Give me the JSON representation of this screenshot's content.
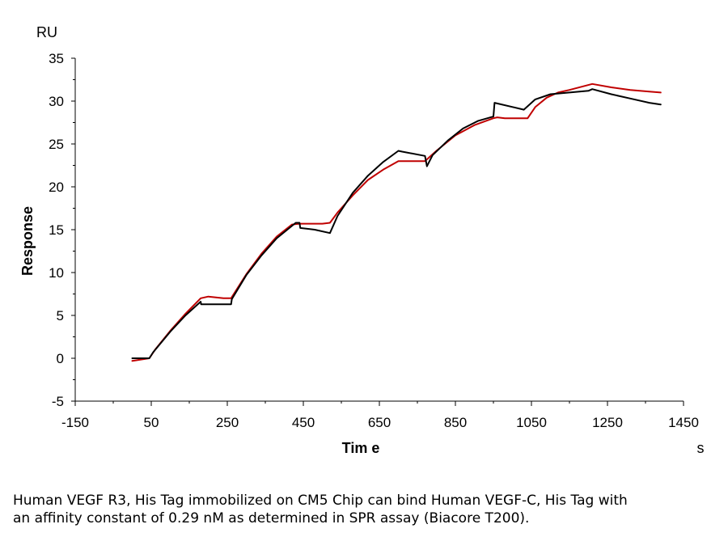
{
  "chart_data": {
    "type": "line",
    "title": "",
    "xlabel": "Tim e",
    "ylabel": "Response",
    "x_unit": "s",
    "y_unit": "RU",
    "xlim": [
      -150,
      1450
    ],
    "ylim": [
      -5,
      35
    ],
    "x_ticks": [
      -150,
      50,
      250,
      450,
      650,
      850,
      1050,
      1250,
      1450
    ],
    "y_ticks": [
      35,
      30,
      25,
      20,
      15,
      10,
      5,
      0,
      -5
    ],
    "x_tick_labels": [
      "-150",
      "50",
      "250",
      "450",
      "650",
      "850",
      "1050",
      "1250",
      "1450"
    ],
    "y_tick_labels": [
      "35",
      "30",
      "25",
      "20",
      "15",
      "10",
      "5",
      "0",
      "-5"
    ],
    "grid": false,
    "legend": "none",
    "series": [
      {
        "color": "#c00000",
        "x": [
          0,
          45,
          60,
          100,
          140,
          180,
          200,
          240,
          260,
          300,
          340,
          380,
          420,
          440,
          460,
          480,
          500,
          520,
          540,
          580,
          620,
          660,
          700,
          710,
          740,
          770,
          800,
          850,
          900,
          950,
          960,
          980,
          1010,
          1040,
          1060,
          1090,
          1120,
          1150,
          1210,
          1260,
          1310,
          1360,
          1390
        ],
        "y": [
          -0.3,
          0.0,
          1.0,
          3.2,
          5.2,
          7.0,
          7.2,
          7.0,
          7.0,
          9.8,
          12.2,
          14.2,
          15.6,
          15.7,
          15.7,
          15.7,
          15.7,
          15.8,
          17.0,
          19.0,
          20.8,
          22.0,
          23.0,
          23.0,
          23.0,
          23.0,
          24.2,
          26.0,
          27.2,
          28.0,
          28.1,
          28.0,
          28.0,
          28.0,
          29.3,
          30.4,
          31.0,
          31.3,
          32.0,
          31.6,
          31.3,
          31.1,
          31.0
        ]
      },
      {
        "color": "#000000",
        "x": [
          0,
          45,
          55,
          100,
          140,
          180,
          181,
          260,
          262,
          300,
          340,
          380,
          430,
          440,
          442,
          480,
          520,
          540,
          580,
          620,
          660,
          700,
          710,
          770,
          775,
          790,
          830,
          870,
          910,
          950,
          953,
          1030,
          1060,
          1100,
          1150,
          1200,
          1210,
          1260,
          1310,
          1360,
          1390
        ],
        "y": [
          0.0,
          0.0,
          0.7,
          3.1,
          5.0,
          6.6,
          6.3,
          6.3,
          6.9,
          9.7,
          12.0,
          14.0,
          15.8,
          15.8,
          15.2,
          15.0,
          14.6,
          16.6,
          19.3,
          21.3,
          22.9,
          24.2,
          24.1,
          23.6,
          22.4,
          23.7,
          25.4,
          26.8,
          27.7,
          28.2,
          29.8,
          29.0,
          30.2,
          30.8,
          31.0,
          31.2,
          31.4,
          30.8,
          30.3,
          29.8,
          29.6
        ]
      }
    ]
  },
  "caption": {
    "line1": "Human VEGF R3, His Tag immobilized on CM5 Chip can bind Human VEGF-C, His Tag with",
    "line2": "an affinity constant of 0.29 nM as determined in SPR assay (Biacore T200)."
  }
}
